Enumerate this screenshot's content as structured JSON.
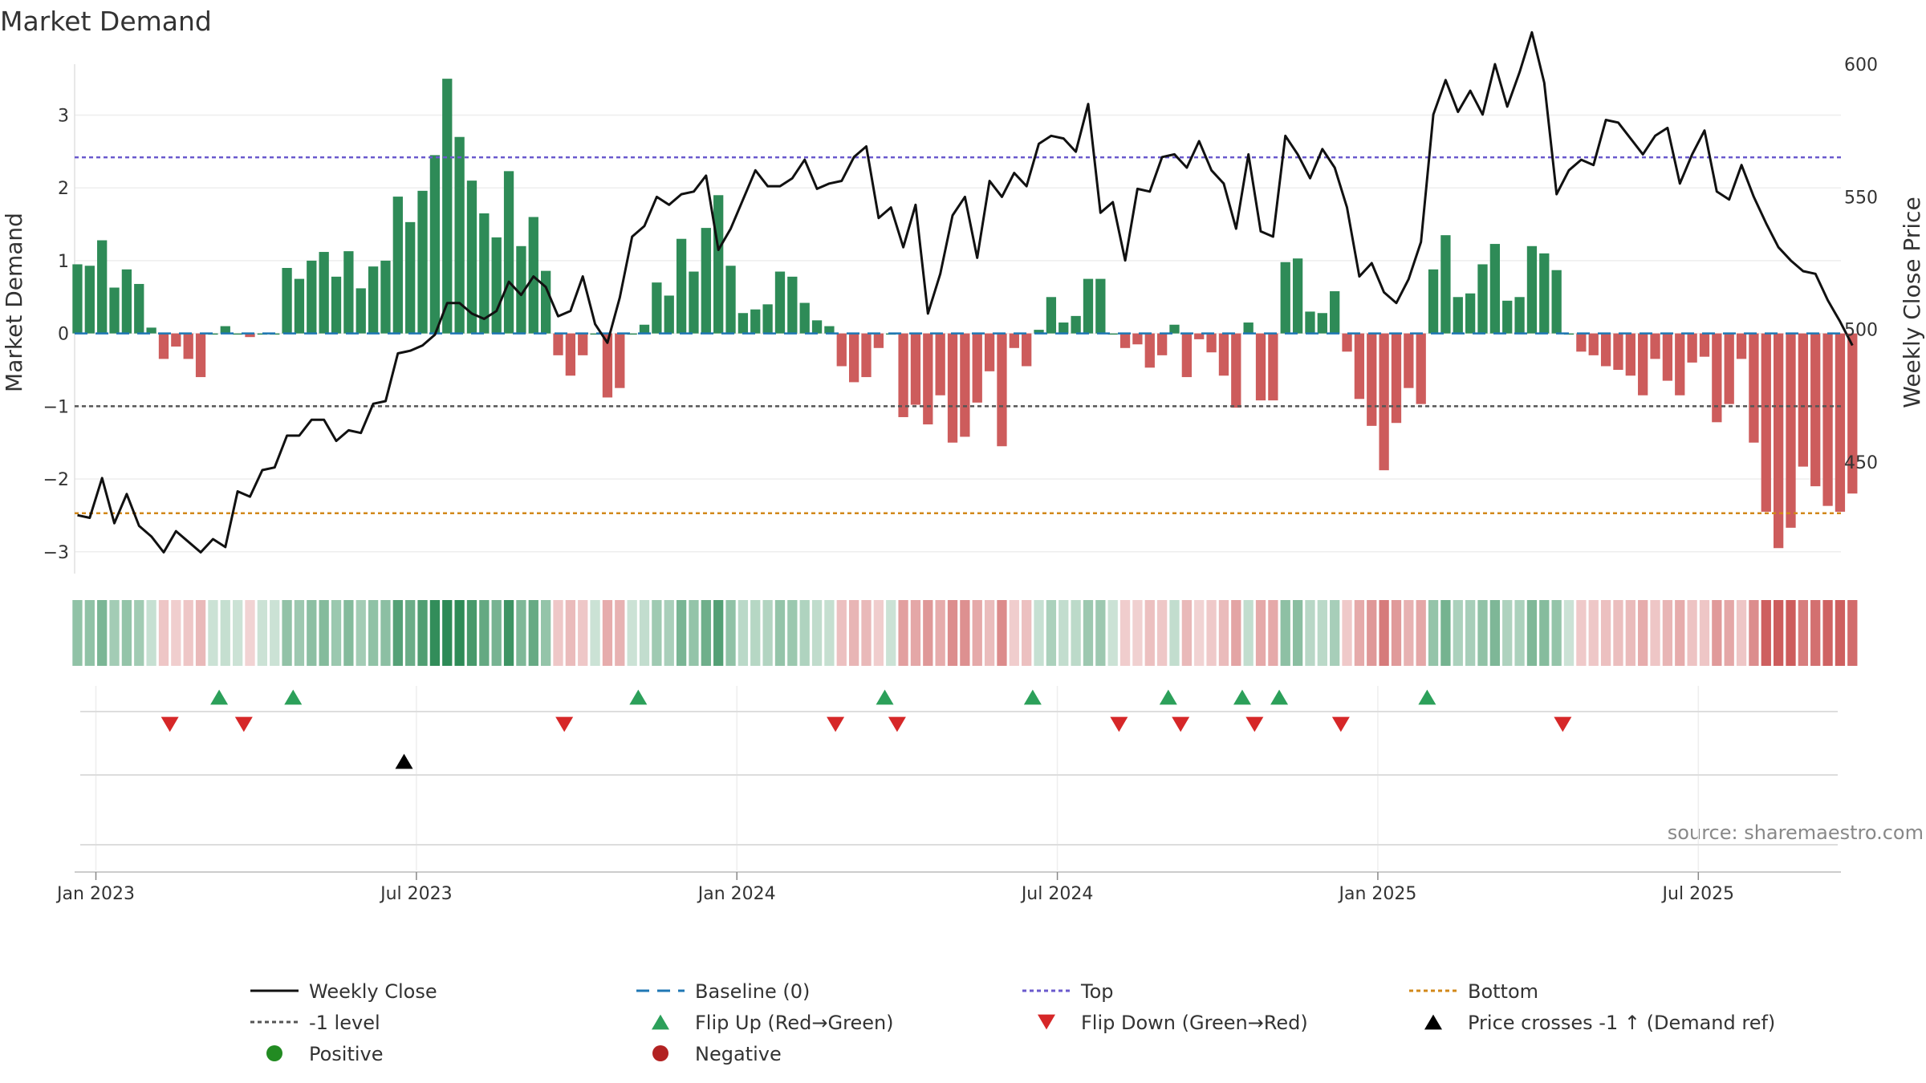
{
  "chart_data": {
    "type": "bar",
    "title": "Market Demand",
    "ylabel": "Market Demand",
    "y2label": "Weekly Close Price",
    "ylim": [
      -3.3,
      3.7
    ],
    "y2lim": [
      408,
      600
    ],
    "yticks": [
      "−3",
      "−2",
      "−1",
      "0",
      "1",
      "2",
      "3"
    ],
    "y2ticks": [
      "450",
      "500",
      "550",
      "600"
    ],
    "x_labels": [
      "Jan 2023",
      "Jul 2023",
      "Jan 2024",
      "Jul 2024",
      "Jan 2025",
      "Jul 2025"
    ],
    "x_label_weeks": [
      0,
      26,
      52,
      78,
      104,
      130
    ],
    "x_start_week": -1.5,
    "reference_lines": {
      "top": 2.42,
      "minus_one": -1.0,
      "bottom": -2.47,
      "baseline": 0
    },
    "source": "source: sharemaestro.com",
    "series": [
      {
        "name": "Market Demand",
        "values": [
          0.95,
          0.93,
          1.28,
          0.63,
          0.88,
          0.68,
          0.08,
          -0.35,
          -0.18,
          -0.35,
          -0.6,
          0.0,
          0.1,
          0.0,
          -0.05,
          0.0,
          0.0,
          0.9,
          0.75,
          1.0,
          1.12,
          0.78,
          1.13,
          0.62,
          0.92,
          1.0,
          1.88,
          1.53,
          1.96,
          2.45,
          3.5,
          2.7,
          2.1,
          1.65,
          1.32,
          2.23,
          1.2,
          1.6,
          0.86,
          -0.3,
          -0.58,
          -0.3,
          0.0,
          -0.88,
          -0.75,
          0.0,
          0.12,
          0.7,
          0.52,
          1.3,
          0.85,
          1.45,
          1.9,
          0.93,
          0.28,
          0.33,
          0.4,
          0.85,
          0.78,
          0.42,
          0.18,
          0.1,
          -0.45,
          -0.67,
          -0.6,
          -0.2,
          0.0,
          -1.15,
          -0.98,
          -1.25,
          -0.85,
          -1.5,
          -1.42,
          -0.95,
          -0.52,
          -1.55,
          -0.2,
          -0.45,
          0.05,
          0.5,
          0.15,
          0.24,
          0.75,
          0.75,
          0.0,
          -0.2,
          -0.15,
          -0.47,
          -0.3,
          0.12,
          -0.6,
          -0.08,
          -0.26,
          -0.58,
          -1.02,
          0.15,
          -0.92,
          -0.92,
          0.98,
          1.03,
          0.3,
          0.28,
          0.58,
          -0.25,
          -0.9,
          -1.27,
          -1.88,
          -1.23,
          -0.75,
          -0.97,
          0.88,
          1.35,
          0.5,
          0.55,
          0.95,
          1.23,
          0.45,
          0.5,
          1.2,
          1.1,
          0.87,
          0.0,
          -0.25,
          -0.3,
          -0.45,
          -0.5,
          -0.58,
          -0.85,
          -0.35,
          -0.65,
          -0.85,
          -0.4,
          -0.32,
          -1.22,
          -0.97,
          -0.35,
          -1.5,
          -2.45,
          -2.95,
          -2.67,
          -1.83,
          -2.1,
          -2.37,
          -2.45,
          -2.2
        ]
      },
      {
        "name": "Weekly Close",
        "values": [
          430,
          429,
          444,
          427,
          438,
          426,
          422,
          416,
          424,
          420,
          416,
          421,
          418,
          439,
          437,
          447,
          448,
          460,
          460,
          466,
          466,
          458,
          462,
          461,
          472,
          473,
          491,
          492,
          494,
          498,
          510,
          510,
          506,
          504,
          507,
          518,
          513,
          520,
          516,
          505,
          507,
          520,
          502,
          495,
          512,
          535,
          539,
          550,
          547,
          551,
          552,
          558,
          530,
          538,
          549,
          560,
          554,
          554,
          557,
          564,
          553,
          555,
          556,
          565,
          569,
          542,
          546,
          531,
          547,
          506,
          521,
          543,
          550,
          527,
          556,
          550,
          559,
          554,
          570,
          573,
          572,
          567,
          585,
          544,
          548,
          526,
          553,
          552,
          565,
          566,
          561,
          571,
          560,
          555,
          538,
          566,
          537,
          535,
          573,
          566,
          557,
          568,
          561,
          546,
          520,
          525,
          514,
          510,
          519,
          533,
          581,
          594,
          582,
          590,
          581,
          600,
          584,
          597,
          612,
          593,
          551,
          560,
          564,
          562,
          579,
          578,
          572,
          566,
          573,
          576,
          555,
          566,
          575,
          552,
          549,
          562,
          550,
          540,
          531,
          526,
          522,
          521,
          511,
          503,
          494
        ]
      },
      {
        "name": "Baseline (0)"
      },
      {
        "name": "Top"
      },
      {
        "name": "Bottom"
      },
      {
        "name": "-1 level"
      },
      {
        "name": "Flip Up (Red→Green)",
        "weeks": [
          10,
          16,
          44,
          64,
          76,
          87,
          93,
          96,
          108
        ]
      },
      {
        "name": "Flip Down (Green→Red)",
        "weeks": [
          6,
          12,
          38,
          60,
          65,
          83,
          88,
          94,
          101,
          119
        ]
      },
      {
        "name": "Price crosses -1 ↑ (Demand ref)",
        "weeks": [
          25
        ]
      }
    ],
    "legend": [
      [
        "Weekly Close",
        "Baseline (0)",
        "Top",
        "Bottom"
      ],
      [
        "-1 level",
        "Flip Up (Red→Green)",
        "Flip Down (Green→Red)",
        "Price crosses -1 ↑ (Demand ref)"
      ],
      [
        "Positive",
        "Negative"
      ]
    ],
    "colors": {
      "positive_bar": "#2e8b57",
      "negative_bar": "#cd5c5c",
      "line": "#111111",
      "baseline": "#1f77b4",
      "top": "#6a5acd",
      "bottom": "#d2881a",
      "minus_one": "#555555",
      "flip_up": "#2ca05a",
      "flip_down": "#d62728",
      "cross": "#000000",
      "positive_marker": "#228b22",
      "negative_marker": "#b22222"
    }
  }
}
